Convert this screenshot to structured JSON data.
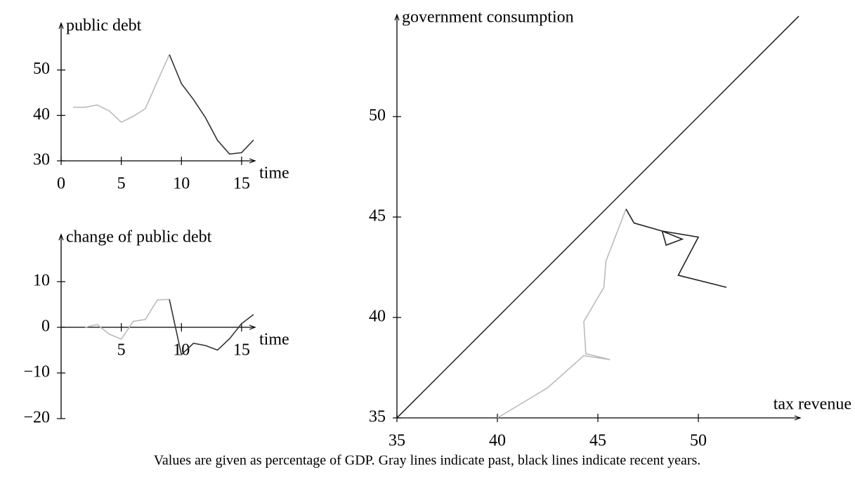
{
  "chart_data": [
    {
      "type": "line",
      "y_label": "public debt",
      "x_label": "time",
      "x": [
        1,
        2,
        3,
        4,
        5,
        6,
        7,
        8,
        9,
        10,
        11,
        12,
        13,
        14,
        15,
        16
      ],
      "series": [
        {
          "color": "#bbbbbb",
          "values": [
            41.8,
            41.8,
            42.3,
            41,
            38.5,
            39.8,
            41.5,
            47.5,
            53.4,
            null,
            null,
            null,
            null,
            null,
            null,
            null
          ]
        },
        {
          "color": "#333333",
          "values": [
            null,
            null,
            null,
            null,
            null,
            null,
            null,
            null,
            53.4,
            47,
            43.5,
            39.5,
            34.5,
            31.5,
            31.8,
            34.6
          ]
        }
      ],
      "xlim": [
        0,
        16
      ],
      "xticks": [
        0,
        5,
        10,
        15
      ],
      "ylim": [
        30,
        60
      ],
      "yticks": [
        30,
        40,
        50
      ]
    },
    {
      "type": "line",
      "y_label": "change of public debt",
      "x_label": "time",
      "x": [
        2,
        3,
        4,
        5,
        6,
        7,
        8,
        9,
        10,
        11,
        12,
        13,
        14,
        15,
        16
      ],
      "series": [
        {
          "color": "#bbbbbb",
          "values": [
            0,
            0.6,
            -1.5,
            -2.6,
            1.3,
            1.7,
            6,
            6.1,
            null,
            null,
            null,
            null,
            null,
            null,
            null
          ]
        },
        {
          "color": "#333333",
          "values": [
            null,
            null,
            null,
            null,
            null,
            null,
            null,
            6.1,
            -6,
            -3.5,
            -4,
            -5,
            -2.5,
            0.8,
            2.8
          ]
        }
      ],
      "xlim": [
        0,
        16
      ],
      "xticks": [
        5,
        10,
        15
      ],
      "ylim": [
        -20,
        20
      ],
      "yticks": [
        {
          "value": -20,
          "label": "−20"
        },
        {
          "value": -10,
          "label": "−10"
        },
        0,
        10
      ]
    },
    {
      "type": "path",
      "y_label": "government consumption",
      "x_label": "tax revenue",
      "series": [
        {
          "color": "#bbbbbb",
          "x": [
            40,
            42.5,
            44.3,
            45.6,
            44.4,
            44.3,
            45.3,
            45.4,
            46.4
          ],
          "values": [
            35,
            36.5,
            38.1,
            37.9,
            38.2,
            39.8,
            41.5,
            42.8,
            45.4
          ]
        },
        {
          "color": "#222222",
          "x": [
            46.4,
            46.8,
            48.2,
            49.2,
            48.4,
            48.2,
            50,
            49,
            51.4
          ],
          "values": [
            45.4,
            44.7,
            44.3,
            43.9,
            43.6,
            44.3,
            44,
            42.1,
            41.5
          ]
        }
      ],
      "diagonal": true,
      "xlim": [
        35,
        55
      ],
      "xticks": [
        35,
        40,
        45,
        50
      ],
      "ylim": [
        35,
        55
      ],
      "yticks": [
        35,
        40,
        45,
        50
      ]
    }
  ],
  "caption": "Values are given as percentage of GDP. Gray lines indicate past, black lines indicate recent years."
}
